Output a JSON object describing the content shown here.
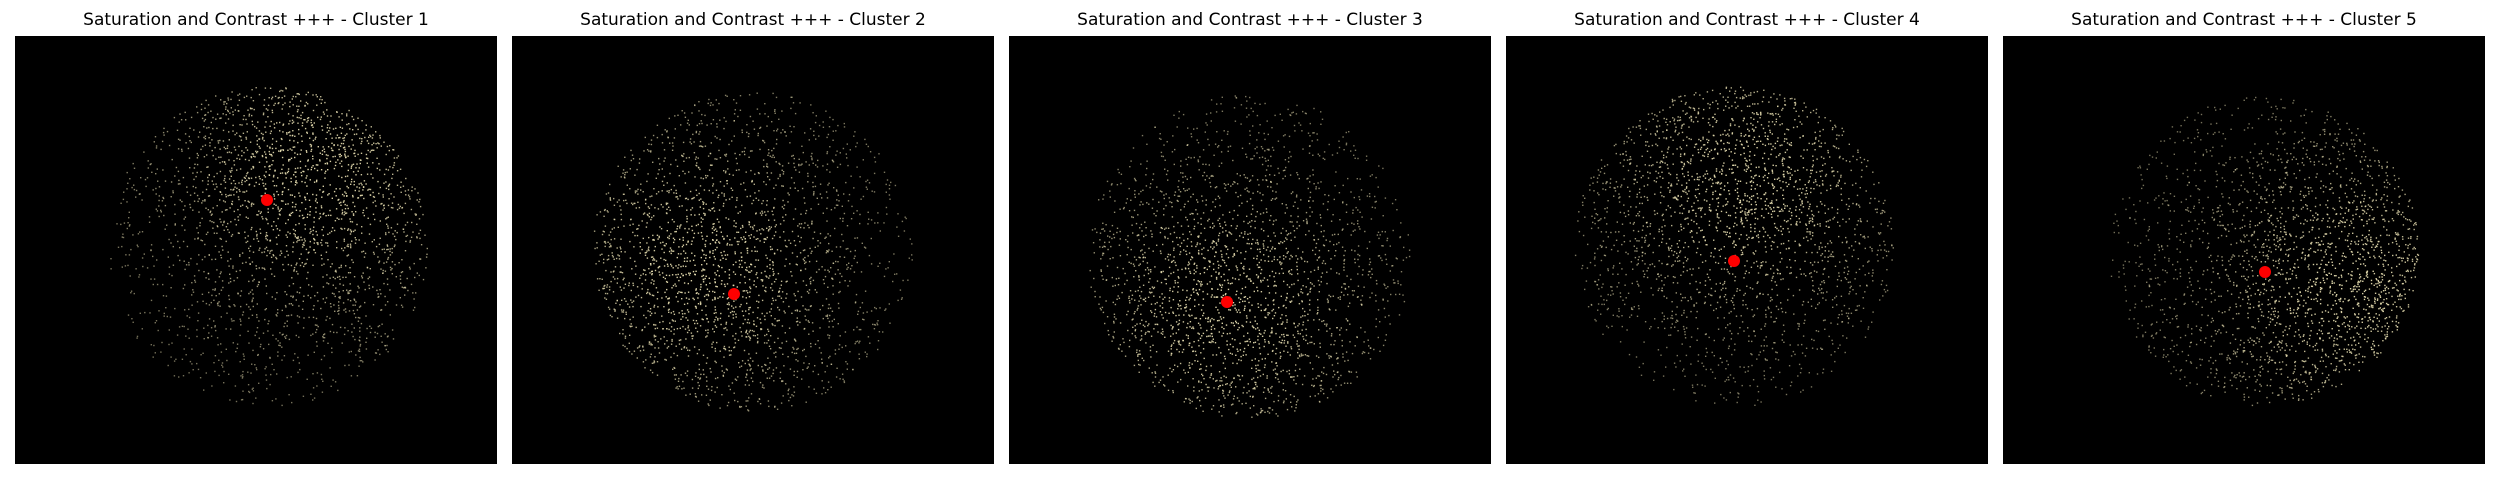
{
  "figure": {
    "panels": [
      {
        "title": "Saturation and Contrast +++ - Cluster 1",
        "centroid_color": "#ff0000",
        "dot_color": "#e6ddb0"
      },
      {
        "title": "Saturation and Contrast +++ - Cluster 2",
        "centroid_color": "#ff0000",
        "dot_color": "#e6ddb0"
      },
      {
        "title": "Saturation and Contrast +++ - Cluster 3",
        "centroid_color": "#ff0000",
        "dot_color": "#e6ddb0"
      },
      {
        "title": "Saturation and Contrast +++ - Cluster 4",
        "centroid_color": "#ff0000",
        "dot_color": "#e6ddb0"
      },
      {
        "title": "Saturation and Contrast +++ - Cluster 5",
        "centroid_color": "#ff0000",
        "dot_color": "#e6ddb0"
      }
    ]
  }
}
